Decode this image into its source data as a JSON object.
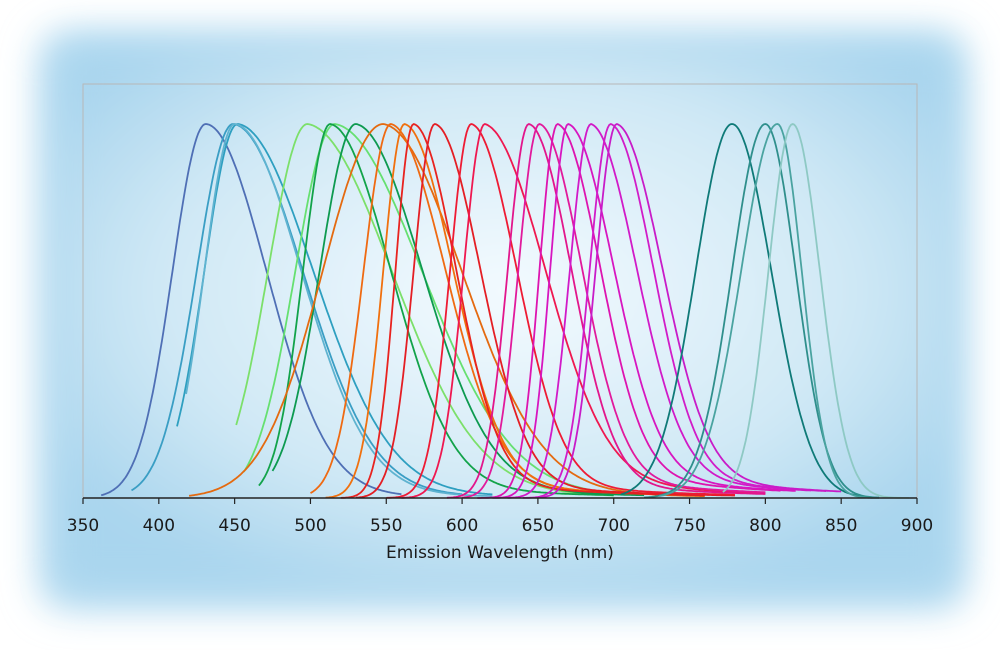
{
  "chart_data": {
    "type": "line",
    "title": "",
    "xlabel": "Emission Wavelength (nm)",
    "ylabel": "",
    "xlim": [
      350,
      900
    ],
    "ylim": [
      0,
      1
    ],
    "x_ticks": [
      "350",
      "400",
      "450",
      "500",
      "550",
      "600",
      "650",
      "700",
      "750",
      "800",
      "850",
      "900"
    ],
    "grid": false,
    "legend": "none",
    "series": [
      {
        "peak": 431,
        "start": 362,
        "end": 560,
        "wl": 22,
        "wr": 40,
        "tail": 0.02,
        "color": "#4f6fb5"
      },
      {
        "peak": 449,
        "start": 382,
        "end": 600,
        "wl": 24,
        "wr": 46,
        "tail": 0.03,
        "color": "#3a9ec4"
      },
      {
        "peak": 452,
        "start": 412,
        "end": 620,
        "wl": 22,
        "wr": 50,
        "tail": 0.04,
        "color": "#2e9fc0"
      },
      {
        "peak": 450,
        "start": 418,
        "end": 620,
        "wl": 20,
        "wr": 44,
        "tail": 0.03,
        "color": "#5fb3d0"
      },
      {
        "peak": 498,
        "start": 451,
        "end": 700,
        "wl": 26,
        "wr": 56,
        "tail": 0.05,
        "color": "#7ce06a"
      },
      {
        "peak": 516,
        "start": 456,
        "end": 700,
        "wl": 26,
        "wr": 58,
        "tail": 0.05,
        "color": "#66e070"
      },
      {
        "peak": 513,
        "start": 466,
        "end": 700,
        "wl": 18,
        "wr": 40,
        "tail": 0.06,
        "color": "#12a34a"
      },
      {
        "peak": 530,
        "start": 475,
        "end": 720,
        "wl": 24,
        "wr": 44,
        "tail": 0.06,
        "color": "#0d9a50"
      },
      {
        "peak": 548,
        "start": 420,
        "end": 760,
        "wl": 40,
        "wr": 52,
        "tail": 0.05,
        "color": "#e46a10"
      },
      {
        "peak": 553,
        "start": 500,
        "end": 760,
        "wl": 18,
        "wr": 36,
        "tail": 0.07,
        "color": "#ef6a12"
      },
      {
        "peak": 562,
        "start": 510,
        "end": 760,
        "wl": 14,
        "wr": 32,
        "tail": 0.07,
        "color": "#f0700e"
      },
      {
        "peak": 568,
        "start": 520,
        "end": 760,
        "wl": 12,
        "wr": 28,
        "tail": 0.06,
        "color": "#e8231f"
      },
      {
        "peak": 582,
        "start": 530,
        "end": 780,
        "wl": 14,
        "wr": 30,
        "tail": 0.06,
        "color": "#e41e24"
      },
      {
        "peak": 606,
        "start": 550,
        "end": 780,
        "wl": 14,
        "wr": 30,
        "tail": 0.06,
        "color": "#ee1b34"
      },
      {
        "peak": 615,
        "start": 560,
        "end": 800,
        "wl": 14,
        "wr": 40,
        "tail": 0.1,
        "color": "#ef1850"
      },
      {
        "peak": 644,
        "start": 590,
        "end": 800,
        "wl": 14,
        "wr": 28,
        "tail": 0.06,
        "color": "#e2168c"
      },
      {
        "peak": 651,
        "start": 600,
        "end": 800,
        "wl": 14,
        "wr": 28,
        "tail": 0.08,
        "color": "#e11a9c"
      },
      {
        "peak": 663,
        "start": 610,
        "end": 810,
        "wl": 12,
        "wr": 28,
        "tail": 0.1,
        "color": "#dd14b0"
      },
      {
        "peak": 670,
        "start": 620,
        "end": 820,
        "wl": 12,
        "wr": 30,
        "tail": 0.1,
        "color": "#d716c0"
      },
      {
        "peak": 685,
        "start": 630,
        "end": 830,
        "wl": 14,
        "wr": 30,
        "tail": 0.1,
        "color": "#d11ac8"
      },
      {
        "peak": 698,
        "start": 640,
        "end": 840,
        "wl": 14,
        "wr": 28,
        "tail": 0.09,
        "color": "#d11cc8"
      },
      {
        "peak": 702,
        "start": 650,
        "end": 850,
        "wl": 14,
        "wr": 30,
        "tail": 0.09,
        "color": "#c81cc8"
      },
      {
        "peak": 778,
        "start": 705,
        "end": 875,
        "wl": 24,
        "wr": 26,
        "tail": 0.0,
        "color": "#0f7a78"
      },
      {
        "peak": 800,
        "start": 720,
        "end": 875,
        "wl": 22,
        "wr": 20,
        "tail": 0.0,
        "color": "#2f8f8c"
      },
      {
        "peak": 808,
        "start": 730,
        "end": 875,
        "wl": 24,
        "wr": 16,
        "tail": 0.0,
        "color": "#4aa3a0"
      },
      {
        "peak": 818,
        "start": 772,
        "end": 895,
        "wl": 16,
        "wr": 18,
        "tail": 0.0,
        "color": "#8ec9c4"
      }
    ]
  }
}
